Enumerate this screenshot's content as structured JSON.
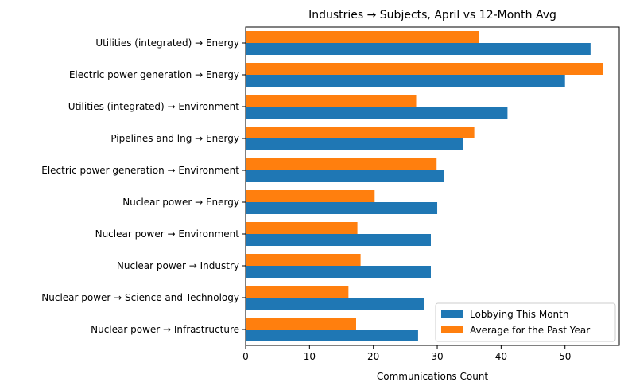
{
  "chart_data": {
    "type": "bar",
    "orientation": "horizontal",
    "title": "Industries → Subjects, April vs 12-Month Avg",
    "xlabel": "Communications Count",
    "ylabel": "",
    "xlim": [
      0,
      58.5
    ],
    "xticks": [
      0,
      10,
      20,
      30,
      40,
      50
    ],
    "grid": false,
    "legend_position": "lower right",
    "categories": [
      "Utilities (integrated) → Energy",
      "Electric power generation → Energy",
      "Utilities (integrated) → Environment",
      "Pipelines and lng → Energy",
      "Electric power generation → Environment",
      "Nuclear power → Energy",
      "Nuclear power → Environment",
      "Nuclear power → Industry",
      "Nuclear power → Science and Technology",
      "Nuclear power → Infrastructure"
    ],
    "series": [
      {
        "name": "Lobbying This Month",
        "color": "#1f77b4",
        "values": [
          54,
          50,
          41,
          34,
          31,
          30,
          29,
          29,
          28,
          27
        ]
      },
      {
        "name": "Average for the Past Year",
        "color": "#ff7f0e",
        "values": [
          36.5,
          56,
          26.7,
          35.8,
          29.9,
          20.2,
          17.5,
          18,
          16.1,
          17.3
        ]
      }
    ]
  }
}
